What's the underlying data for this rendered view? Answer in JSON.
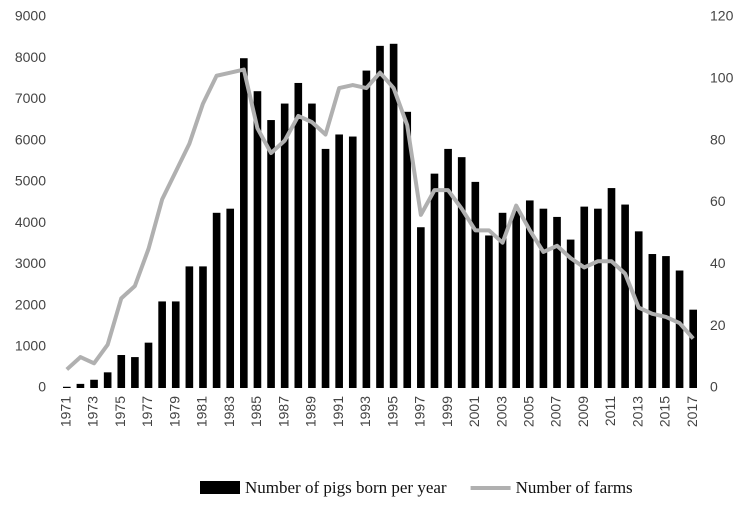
{
  "chart_data": {
    "type": "bar_line",
    "categories": [
      "1971",
      null,
      "1973",
      null,
      "1975",
      null,
      "1977",
      null,
      "1979",
      null,
      "1981",
      null,
      "1983",
      null,
      "1985",
      null,
      "1987",
      null,
      "1989",
      null,
      "1991",
      null,
      "1993",
      null,
      "1995",
      null,
      "1997",
      null,
      "1999",
      null,
      "2001",
      null,
      "2003",
      null,
      "2005",
      null,
      "2007",
      null,
      "2009",
      null,
      "2011",
      null,
      "2013",
      null,
      "2015",
      null,
      "2017"
    ],
    "series": [
      {
        "name": "Number of pigs born per year",
        "color": "#000000",
        "type": "bar",
        "values": [
          30,
          100,
          200,
          380,
          800,
          750,
          1100,
          2100,
          2100,
          2950,
          2950,
          4250,
          4350,
          8000,
          7200,
          6500,
          6900,
          7400,
          6900,
          5800,
          6150,
          6100,
          7700,
          8300,
          8350,
          6700,
          3900,
          5200,
          5800,
          5600,
          5000,
          3700,
          4250,
          4300,
          4550,
          4350,
          4150,
          3600,
          4400,
          4350,
          4850,
          4450,
          3800,
          3250,
          3200,
          2850,
          1900
        ]
      },
      {
        "name": "Number of farms",
        "color": "#b0b0b0",
        "type": "line",
        "axis": "y2",
        "values": [
          6,
          10,
          8,
          14,
          29,
          33,
          45,
          61,
          70,
          79,
          92,
          101,
          102,
          103,
          84,
          76,
          80,
          88,
          86,
          82,
          97,
          98,
          97,
          102,
          97,
          85,
          56,
          64,
          64,
          58,
          51,
          51,
          47,
          59,
          51,
          44,
          46,
          42,
          39,
          41,
          41,
          37,
          26,
          24,
          23,
          21,
          16
        ]
      }
    ],
    "ylim": [
      0,
      9000
    ],
    "yticks": [
      0,
      1000,
      2000,
      3000,
      4000,
      5000,
      6000,
      7000,
      8000,
      9000
    ],
    "y2lim": [
      0,
      120
    ],
    "y2ticks": [
      0,
      20,
      40,
      60,
      80,
      100,
      120
    ],
    "legend": "bottom"
  }
}
